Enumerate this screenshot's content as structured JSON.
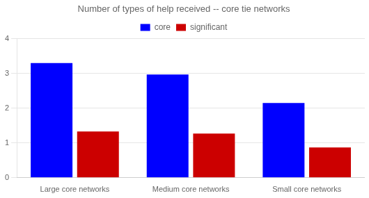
{
  "chart_data": {
    "type": "bar",
    "title": "Number of types of help received -- core tie networks",
    "categories": [
      "Large core networks",
      "Medium core networks",
      "Small core networks"
    ],
    "series": [
      {
        "name": "core",
        "color": "#0000FF",
        "values": [
          3.3,
          2.97,
          2.15
        ]
      },
      {
        "name": "significant",
        "color": "#CC0000",
        "values": [
          1.33,
          1.27,
          0.87
        ]
      }
    ],
    "ylim": [
      0,
      4
    ],
    "yticks": [
      0,
      1,
      2,
      3,
      4
    ],
    "grid": true,
    "legend": "top"
  }
}
